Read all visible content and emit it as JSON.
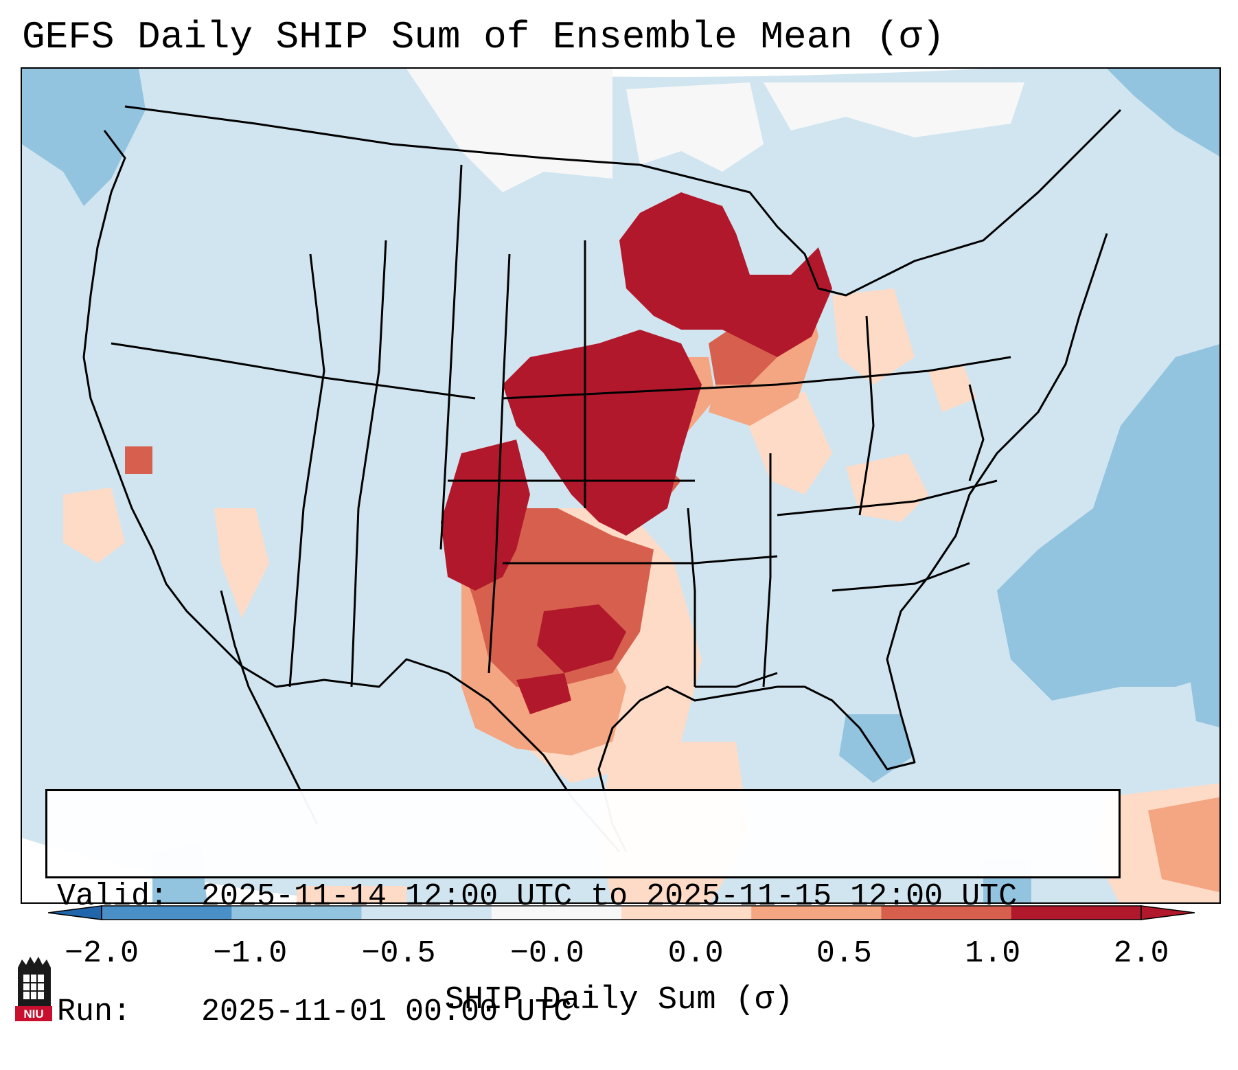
{
  "title": "GEFS Daily SHIP Sum of Ensemble Mean (σ)",
  "info": {
    "valid_label": "Valid:",
    "valid_value": "2025-11-14 12:00 UTC to 2025-11-15 12:00 UTC",
    "run_label": "Run:",
    "run_value": "2025-11-01 00:00 UTC"
  },
  "colorbar": {
    "label": "SHIP Daily Sum (σ)",
    "ticks": [
      "−2.0",
      "−1.0",
      "−0.5",
      "−0.0",
      "0.0",
      "0.5",
      "1.0",
      "2.0"
    ],
    "colors": [
      "#4a8fc6",
      "#92c3df",
      "#d1e5f0",
      "#f7f7f7",
      "#fddbc7",
      "#f4a582",
      "#d6604d",
      "#b2182b"
    ],
    "under_color": "#2166ac",
    "over_color": "#b2182b"
  },
  "map": {
    "projection": "Lambert Conformal",
    "region": "Contiguous United States",
    "background_color": "#d1e5f0",
    "borders_color": "#000000"
  },
  "logo_text": "NIU"
}
